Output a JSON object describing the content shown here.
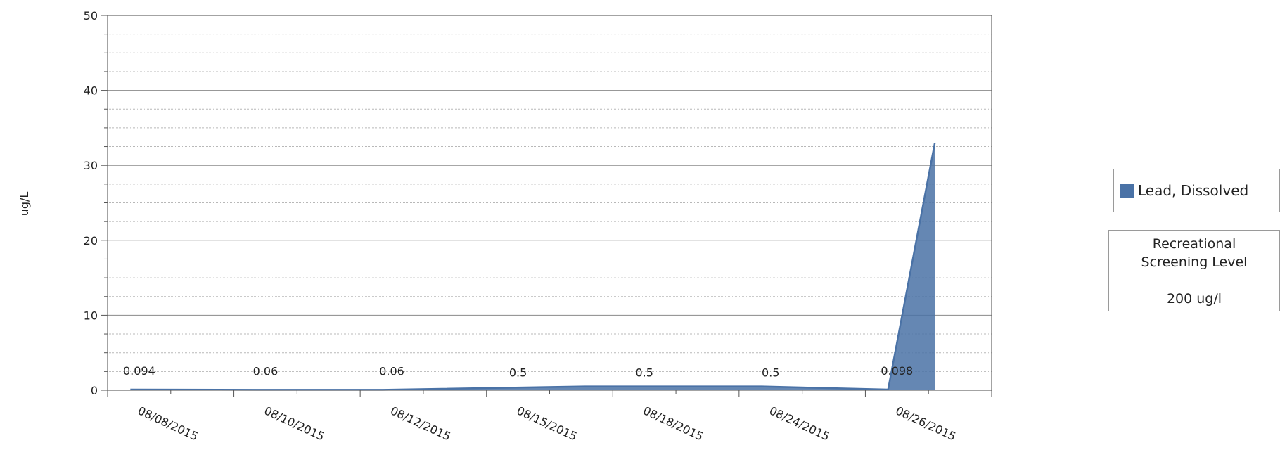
{
  "chart_data": {
    "type": "area",
    "title": "",
    "xlabel": "",
    "ylabel": "ug/L",
    "ylim": [
      0,
      50
    ],
    "y_ticks": [
      0,
      10,
      20,
      30,
      40,
      50
    ],
    "grid": true,
    "legend_position": "right",
    "categories": [
      "08/08/2015",
      "08/10/2015",
      "08/12/2015",
      "08/15/2015",
      "08/18/2015",
      "08/24/2015",
      "08/26/2015"
    ],
    "series": [
      {
        "name": "Lead, Dissolved",
        "color": "#4a72a6",
        "points": [
          {
            "x": "08/08/2015",
            "y": 0.094,
            "label": "0.094"
          },
          {
            "x": "08/10/2015",
            "y": 0.06,
            "label": "0.06"
          },
          {
            "x": "08/12/2015",
            "y": 0.06,
            "label": "0.06"
          },
          {
            "x": "08/15/2015",
            "y": 0.5,
            "label": "0.5"
          },
          {
            "x": "08/18/2015",
            "y": 0.5,
            "label": "0.5"
          },
          {
            "x": "08/24/2015",
            "y": 0.5,
            "label": "0.5"
          },
          {
            "x": "08/26/2015",
            "y": 0.098,
            "label": "0.098"
          },
          {
            "x": "08/26/2015",
            "y": 33,
            "label": ""
          }
        ]
      }
    ],
    "annotation": {
      "lines": [
        "Recreational",
        "Screening Level",
        "",
        "200 ug/l"
      ]
    }
  }
}
